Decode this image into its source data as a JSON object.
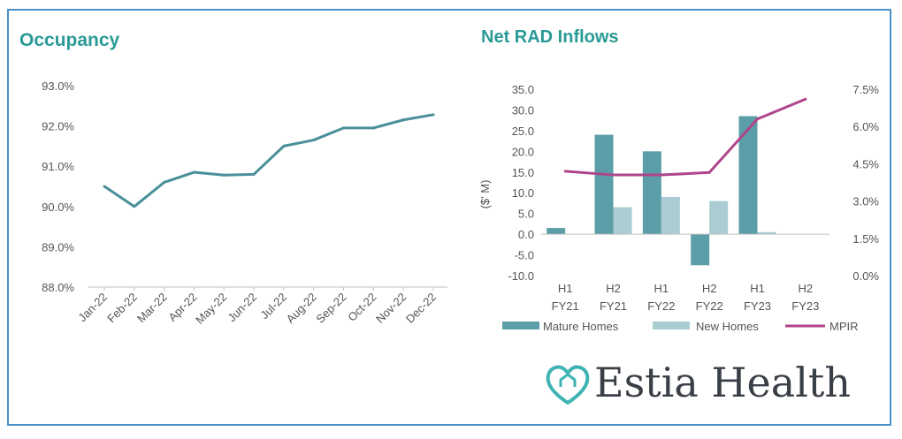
{
  "chart_data": [
    {
      "type": "line",
      "title": "Occupancy",
      "categories": [
        "Jan-22",
        "Feb-22",
        "Mar-22",
        "Apr-22",
        "May-22",
        "Jun-22",
        "Jul-22",
        "Aug-22",
        "Sep-22",
        "Oct-22",
        "Nov-22",
        "Dec-22"
      ],
      "values": [
        90.5,
        90.0,
        90.6,
        90.85,
        90.78,
        90.8,
        91.5,
        91.65,
        91.95,
        91.95,
        92.15,
        92.28
      ],
      "ylim": [
        88.0,
        93.0
      ],
      "yticks": [
        "93.0%",
        "92.0%",
        "91.0%",
        "90.0%",
        "89.0%",
        "88.0%"
      ],
      "ytick_values": [
        93,
        92,
        91,
        90,
        89,
        88
      ],
      "line_color": "#4a8f9a"
    },
    {
      "type": "bar",
      "title": "Net RAD Inflows",
      "ylabel": "($' M)",
      "categories": [
        [
          "H1",
          "FY21"
        ],
        [
          "H2",
          "FY21"
        ],
        [
          "H1",
          "FY22"
        ],
        [
          "H2",
          "FY22"
        ],
        [
          "H1",
          "FY23"
        ],
        [
          "H2",
          "FY23"
        ]
      ],
      "ylim": [
        -10.0,
        35.0
      ],
      "yticks": [
        "35.0",
        "30.0",
        "25.0",
        "20.0",
        "15.0",
        "10.0",
        "5.0",
        "0.0",
        "-5.0",
        "-10.0"
      ],
      "ytick_values": [
        35,
        30,
        25,
        20,
        15,
        10,
        5,
        0,
        -5,
        -10
      ],
      "series": [
        {
          "name": "Mature Homes",
          "values": [
            1.5,
            24.0,
            20.0,
            -7.5,
            28.5,
            0
          ],
          "color": "#5b9ea8"
        },
        {
          "name": "New Homes",
          "values": [
            0,
            6.5,
            9.0,
            8.0,
            0.5,
            0
          ],
          "color": "#a9cdd2"
        }
      ],
      "secondary_axis": {
        "ylim": [
          0.0,
          7.5
        ],
        "yticks": [
          "7.5%",
          "6.0%",
          "4.5%",
          "3.0%",
          "1.5%",
          "0.0%"
        ],
        "ytick_values": [
          7.5,
          6.0,
          4.5,
          3.0,
          1.5,
          0.0
        ]
      },
      "line_series": {
        "name": "MPIR",
        "values": [
          4.2,
          4.05,
          4.05,
          4.15,
          6.3,
          7.1
        ],
        "color": "#b0448c"
      }
    }
  ],
  "brand": {
    "name": "Estia Health",
    "color": "#3fb3b3"
  }
}
